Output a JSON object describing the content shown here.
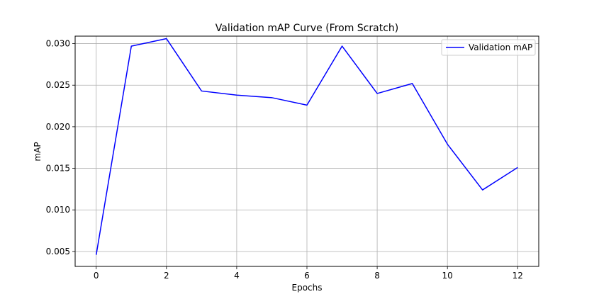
{
  "chart_data": {
    "type": "line",
    "title": "Validation mAP Curve (From Scratch)",
    "xlabel": "Epochs",
    "ylabel": "mAP",
    "xlim": [
      -0.6,
      12.6
    ],
    "ylim": [
      0.0032,
      0.0309
    ],
    "xticks": [
      0,
      2,
      4,
      6,
      8,
      10,
      12
    ],
    "yticks": [
      0.005,
      0.01,
      0.015,
      0.02,
      0.025,
      0.03
    ],
    "ytick_labels": [
      "0.005",
      "0.010",
      "0.015",
      "0.020",
      "0.025",
      "0.030"
    ],
    "grid": true,
    "legend_position": "top-right",
    "series": [
      {
        "name": "Validation mAP",
        "color": "#0000ff",
        "x": [
          0,
          1,
          2,
          3,
          4,
          5,
          6,
          7,
          8,
          9,
          10,
          11,
          12
        ],
        "y": [
          0.0046,
          0.0297,
          0.0306,
          0.0243,
          0.0238,
          0.0235,
          0.0226,
          0.0297,
          0.024,
          0.0252,
          0.0179,
          0.0124,
          0.0151
        ]
      }
    ]
  }
}
